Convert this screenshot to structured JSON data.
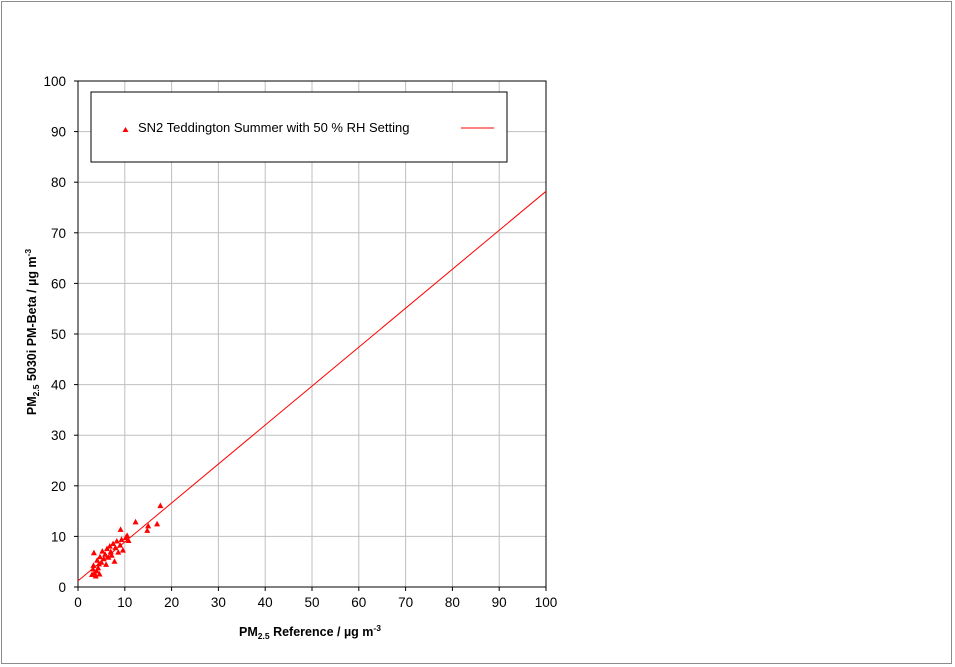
{
  "chart_data": {
    "type": "scatter",
    "xlim": [
      0,
      100
    ],
    "ylim": [
      0,
      100
    ],
    "xticks": [
      0,
      10,
      20,
      30,
      40,
      50,
      60,
      70,
      80,
      90,
      100
    ],
    "yticks": [
      0,
      10,
      20,
      30,
      40,
      50,
      60,
      70,
      80,
      90,
      100
    ],
    "grid": true,
    "legend_position": "top",
    "xlabel": {
      "base": "PM",
      "sub": "2.5",
      "rest": " Reference / µg m",
      "sup": "-3"
    },
    "ylabel": {
      "base": "PM",
      "sub": "2.5",
      "rest": " 5030i PM-Beta / µg m",
      "sup": "-3"
    },
    "series": [
      {
        "name": "SN2 Teddington Summer with 50 % RH Setting",
        "marker": "triangle",
        "color": "#ff0000",
        "points": [
          [
            3.0,
            2.5
          ],
          [
            3.2,
            3.6
          ],
          [
            3.3,
            4.3
          ],
          [
            3.4,
            6.8
          ],
          [
            3.5,
            2.8
          ],
          [
            3.8,
            2.2
          ],
          [
            4.0,
            3.2
          ],
          [
            4.1,
            5.3
          ],
          [
            4.3,
            3.8
          ],
          [
            4.5,
            4.6
          ],
          [
            4.6,
            2.6
          ],
          [
            4.7,
            6.0
          ],
          [
            5.0,
            4.9
          ],
          [
            5.2,
            7.1
          ],
          [
            5.5,
            5.6
          ],
          [
            5.8,
            6.5
          ],
          [
            6.0,
            4.5
          ],
          [
            6.2,
            7.6
          ],
          [
            6.5,
            5.9
          ],
          [
            6.8,
            8.1
          ],
          [
            7.0,
            7.0
          ],
          [
            7.2,
            6.3
          ],
          [
            7.5,
            8.6
          ],
          [
            7.8,
            5.1
          ],
          [
            8.0,
            7.8
          ],
          [
            8.3,
            9.1
          ],
          [
            8.6,
            6.9
          ],
          [
            9.0,
            8.3
          ],
          [
            9.1,
            11.4
          ],
          [
            9.3,
            9.4
          ],
          [
            9.6,
            7.3
          ],
          [
            10.2,
            9.8
          ],
          [
            10.5,
            10.2
          ],
          [
            10.8,
            9.2
          ],
          [
            12.3,
            12.9
          ],
          [
            14.8,
            11.2
          ],
          [
            15.0,
            12.1
          ],
          [
            16.9,
            12.5
          ],
          [
            17.6,
            16.1
          ]
        ]
      },
      {
        "type": "line",
        "color": "#ff0000",
        "points": [
          [
            0,
            1.2
          ],
          [
            100,
            78.2
          ]
        ]
      }
    ]
  }
}
